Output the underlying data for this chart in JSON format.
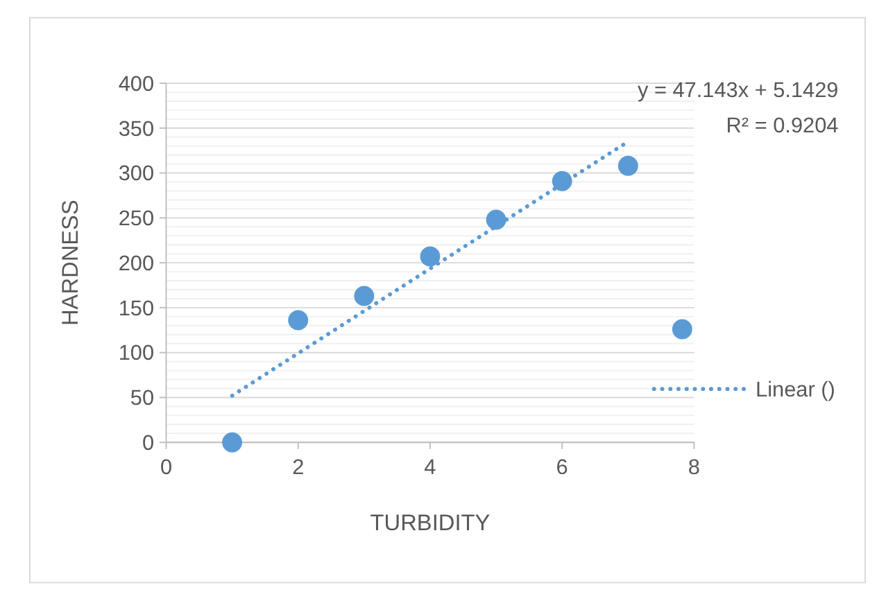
{
  "chart_data": {
    "type": "scatter",
    "xlabel": "TURBIDITY",
    "ylabel": "HARDNESS",
    "xlim": [
      0,
      8
    ],
    "xticks": [
      0,
      2,
      4,
      6,
      8
    ],
    "ylim": [
      0,
      400
    ],
    "yticks": [
      0,
      50,
      100,
      150,
      200,
      250,
      300,
      350,
      400
    ],
    "grid": "y",
    "legend": "right",
    "marker": "circle",
    "series": [
      {
        "color": "#5b9bd5",
        "x": [
          1,
          2,
          3,
          4,
          5,
          6,
          7,
          7.82
        ],
        "values": [
          0,
          136,
          163,
          207,
          248,
          291,
          308,
          126
        ]
      },
      {
        "type": "line",
        "name": "Linear ()",
        "color": "#5b9bd5",
        "line_style": "dotted",
        "marker": "none",
        "x": [
          1,
          7
        ],
        "values": [
          52,
          335
        ]
      }
    ],
    "annotations": [
      "y = 47.143x + 5.1429",
      "R² = 0.9204"
    ]
  }
}
